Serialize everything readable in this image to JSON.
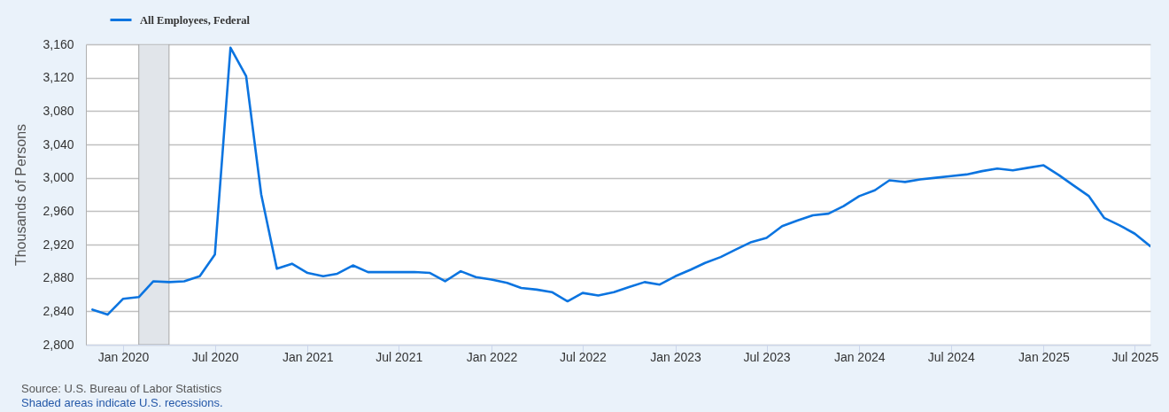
{
  "chart_data": {
    "type": "line",
    "ylabel": "Thousands of Persons",
    "annotations": [
      "Source: U.S. Bureau of Labor Statistics",
      "Shaded areas indicate U.S. recessions."
    ],
    "x": [
      "2019-11",
      "2019-12",
      "2020-01",
      "2020-02",
      "2020-03",
      "2020-04",
      "2020-05",
      "2020-06",
      "2020-07",
      "2020-08",
      "2020-09",
      "2020-10",
      "2020-11",
      "2020-12",
      "2021-01",
      "2021-02",
      "2021-03",
      "2021-04",
      "2021-05",
      "2021-06",
      "2021-07",
      "2021-08",
      "2021-09",
      "2021-10",
      "2021-11",
      "2021-12",
      "2022-01",
      "2022-02",
      "2022-03",
      "2022-04",
      "2022-05",
      "2022-06",
      "2022-07",
      "2022-08",
      "2022-09",
      "2022-10",
      "2022-11",
      "2022-12",
      "2023-01",
      "2023-02",
      "2023-03",
      "2023-04",
      "2023-05",
      "2023-06",
      "2023-07",
      "2023-08",
      "2023-09",
      "2023-10",
      "2023-11",
      "2023-12",
      "2024-01",
      "2024-02",
      "2024-03",
      "2024-04",
      "2024-05",
      "2024-06",
      "2024-07",
      "2024-08",
      "2024-09",
      "2024-10",
      "2024-11",
      "2024-12",
      "2025-01",
      "2025-02",
      "2025-03",
      "2025-04",
      "2025-05",
      "2025-06",
      "2025-07",
      "2025-08"
    ],
    "series": [
      {
        "name": "All Employees, Federal",
        "color": "#0b74e0",
        "values": [
          2842,
          2836,
          2855,
          2857,
          2876,
          2875,
          2876,
          2882,
          2908,
          3156,
          3122,
          2980,
          2891,
          2897,
          2886,
          2882,
          2885,
          2895,
          2887,
          2887,
          2887,
          2887,
          2886,
          2876,
          2888,
          2881,
          2878,
          2874,
          2868,
          2866,
          2863,
          2852,
          2862,
          2859,
          2863,
          2869,
          2875,
          2872,
          2882,
          2890,
          2898,
          2905,
          2914,
          2923,
          2928,
          2942,
          2949,
          2955,
          2957,
          2966,
          2978,
          2985,
          2997,
          2995,
          2998,
          3000,
          3002,
          3004,
          3008,
          3011,
          3009,
          3012,
          3015,
          3003,
          2991,
          2978,
          2952,
          2943,
          2933,
          2918
        ]
      }
    ],
    "xlim": [
      "2019-10-19",
      "2025-08-01"
    ],
    "xticks": [
      {
        "value": "2020-01",
        "label": "Jan 2020"
      },
      {
        "value": "2020-07",
        "label": "Jul 2020"
      },
      {
        "value": "2021-01",
        "label": "Jan 2021"
      },
      {
        "value": "2021-07",
        "label": "Jul 2021"
      },
      {
        "value": "2022-01",
        "label": "Jan 2022"
      },
      {
        "value": "2022-07",
        "label": "Jul 2022"
      },
      {
        "value": "2023-01",
        "label": "Jan 2023"
      },
      {
        "value": "2023-07",
        "label": "Jul 2023"
      },
      {
        "value": "2024-01",
        "label": "Jan 2024"
      },
      {
        "value": "2024-07",
        "label": "Jul 2024"
      },
      {
        "value": "2025-01",
        "label": "Jan 2025"
      },
      {
        "value": "2025-07",
        "label": "Jul 2025"
      }
    ],
    "ylim": [
      2800,
      3160
    ],
    "yticks": [
      {
        "value": 2800,
        "label": "2,800"
      },
      {
        "value": 2840,
        "label": "2,840"
      },
      {
        "value": 2880,
        "label": "2,880"
      },
      {
        "value": 2920,
        "label": "2,920"
      },
      {
        "value": 2960,
        "label": "2,960"
      },
      {
        "value": 3000,
        "label": "3,000"
      },
      {
        "value": 3040,
        "label": "3,040"
      },
      {
        "value": 3080,
        "label": "3,080"
      },
      {
        "value": 3120,
        "label": "3,120"
      },
      {
        "value": 3160,
        "label": "3,160"
      }
    ],
    "bands": [
      {
        "axis": "x",
        "from": "2020-02",
        "to": "2020-04",
        "color": "#e1e5ea"
      }
    ],
    "grid": "y",
    "legend": "top left"
  }
}
